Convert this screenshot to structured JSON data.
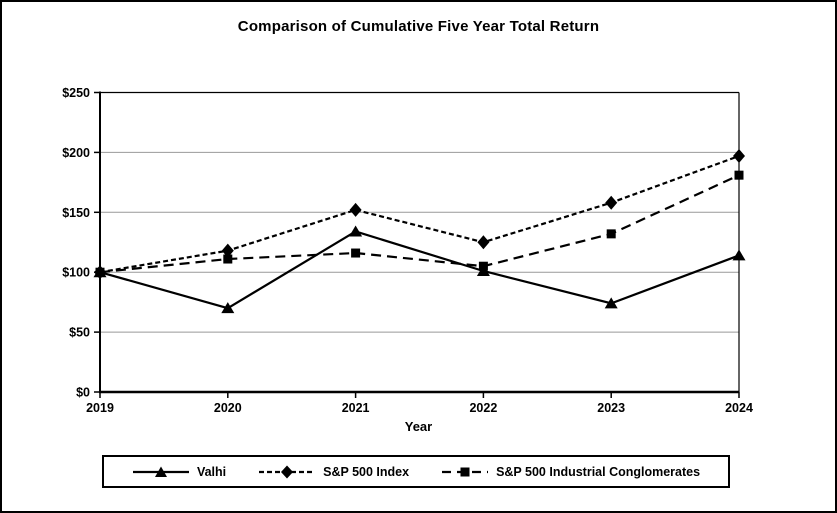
{
  "figure": {
    "title": "Comparison of Cumulative Five Year Total Return"
  },
  "chart_data": {
    "type": "line",
    "title": "Comparison of Cumulative Five Year Total Return",
    "xlabel": "Year",
    "ylabel": "",
    "x": [
      2019,
      2020,
      2021,
      2022,
      2023,
      2024
    ],
    "x_tick_labels": [
      "2019",
      "2020",
      "2021",
      "2022",
      "2023",
      "2024"
    ],
    "y_ticks": [
      0,
      50,
      100,
      150,
      200,
      250
    ],
    "y_tick_labels": [
      "$0",
      "$50",
      "$100",
      "$150",
      "$200",
      "$250"
    ],
    "ylim": [
      0,
      250
    ],
    "grid": "horizontal",
    "legend_position": "bottom",
    "series": [
      {
        "name": "Valhi",
        "line_style": "solid",
        "marker": "triangle",
        "color": "#000000",
        "values": [
          100,
          70,
          134,
          101,
          74,
          114
        ]
      },
      {
        "name": "S&P 500 Index",
        "line_style": "short-dash",
        "marker": "diamond",
        "color": "#000000",
        "values": [
          100,
          118,
          152,
          125,
          158,
          197
        ]
      },
      {
        "name": "S&P 500 Industrial Conglomerates",
        "line_style": "long-dash",
        "marker": "square",
        "color": "#000000",
        "values": [
          100,
          111,
          116,
          105,
          132,
          181
        ]
      }
    ]
  },
  "colors": {
    "line": "#000000",
    "grid": "#999999",
    "background": "#ffffff",
    "border": "#000000"
  }
}
